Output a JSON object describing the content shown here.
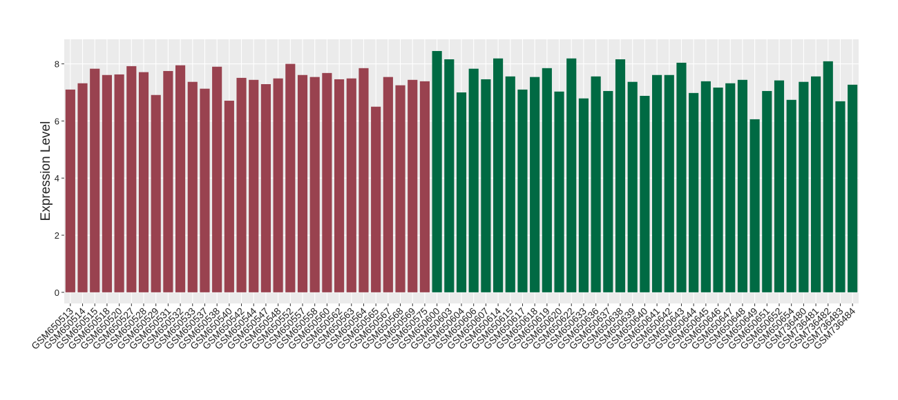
{
  "chart_data": {
    "type": "bar",
    "y_label": "Expression Level",
    "categories": [
      "GSM650513",
      "GSM650514",
      "GSM650515",
      "GSM650518",
      "GSM650520",
      "GSM650527",
      "GSM650528",
      "GSM650529",
      "GSM650531",
      "GSM650532",
      "GSM650533",
      "GSM650537",
      "GSM650538",
      "GSM650540",
      "GSM650542",
      "GSM650544",
      "GSM650547",
      "GSM650548",
      "GSM650552",
      "GSM650557",
      "GSM650558",
      "GSM650560",
      "GSM650562",
      "GSM650563",
      "GSM650564",
      "GSM650565",
      "GSM650567",
      "GSM650568",
      "GSM650569",
      "GSM650575",
      "GSM650600",
      "GSM650603",
      "GSM650604",
      "GSM650606",
      "GSM650607",
      "GSM650614",
      "GSM650615",
      "GSM650617",
      "GSM650618",
      "GSM650619",
      "GSM650620",
      "GSM650622",
      "GSM650633",
      "GSM650636",
      "GSM650637",
      "GSM650638",
      "GSM650639",
      "GSM650640",
      "GSM650641",
      "GSM650642",
      "GSM650643",
      "GSM650644",
      "GSM650645",
      "GSM650646",
      "GSM650647",
      "GSM650648",
      "GSM650649",
      "GSM650651",
      "GSM650652",
      "GSM650654",
      "GSM736480",
      "GSM736481",
      "GSM736482",
      "GSM736483",
      "GSM736484"
    ],
    "values": [
      7.1,
      7.32,
      7.83,
      7.61,
      7.63,
      7.92,
      7.71,
      6.91,
      7.75,
      7.95,
      7.37,
      7.13,
      7.9,
      6.71,
      7.51,
      7.44,
      7.29,
      7.49,
      8.0,
      7.61,
      7.54,
      7.68,
      7.46,
      7.49,
      7.85,
      6.5,
      7.54,
      7.25,
      7.44,
      7.39,
      8.45,
      8.16,
      7.0,
      7.83,
      7.46,
      8.19,
      7.56,
      7.1,
      7.54,
      7.85,
      7.03,
      8.19,
      6.79,
      7.56,
      7.05,
      8.16,
      7.37,
      6.88,
      7.61,
      7.61,
      8.04,
      6.98,
      7.39,
      7.17,
      7.32,
      7.44,
      6.06,
      7.05,
      7.42,
      6.74,
      7.37,
      7.56,
      8.09,
      6.69,
      7.27
    ],
    "colors": [
      "#99424f",
      "#99424f",
      "#99424f",
      "#99424f",
      "#99424f",
      "#99424f",
      "#99424f",
      "#99424f",
      "#99424f",
      "#99424f",
      "#99424f",
      "#99424f",
      "#99424f",
      "#99424f",
      "#99424f",
      "#99424f",
      "#99424f",
      "#99424f",
      "#99424f",
      "#99424f",
      "#99424f",
      "#99424f",
      "#99424f",
      "#99424f",
      "#99424f",
      "#99424f",
      "#99424f",
      "#99424f",
      "#99424f",
      "#99424f",
      "#006a43",
      "#006a43",
      "#006a43",
      "#006a43",
      "#006a43",
      "#006a43",
      "#006a43",
      "#006a43",
      "#006a43",
      "#006a43",
      "#006a43",
      "#006a43",
      "#006a43",
      "#006a43",
      "#006a43",
      "#006a43",
      "#006a43",
      "#006a43",
      "#006a43",
      "#006a43",
      "#006a43",
      "#006a43",
      "#006a43",
      "#006a43",
      "#006a43",
      "#006a43",
      "#006a43",
      "#006a43",
      "#006a43",
      "#006a43",
      "#006a43",
      "#006a43",
      "#006a43",
      "#006a43",
      "#006a43"
    ],
    "ylim": [
      -0.39,
      8.86
    ],
    "yticks": [
      0,
      2,
      4,
      6,
      8
    ],
    "grid": true
  }
}
